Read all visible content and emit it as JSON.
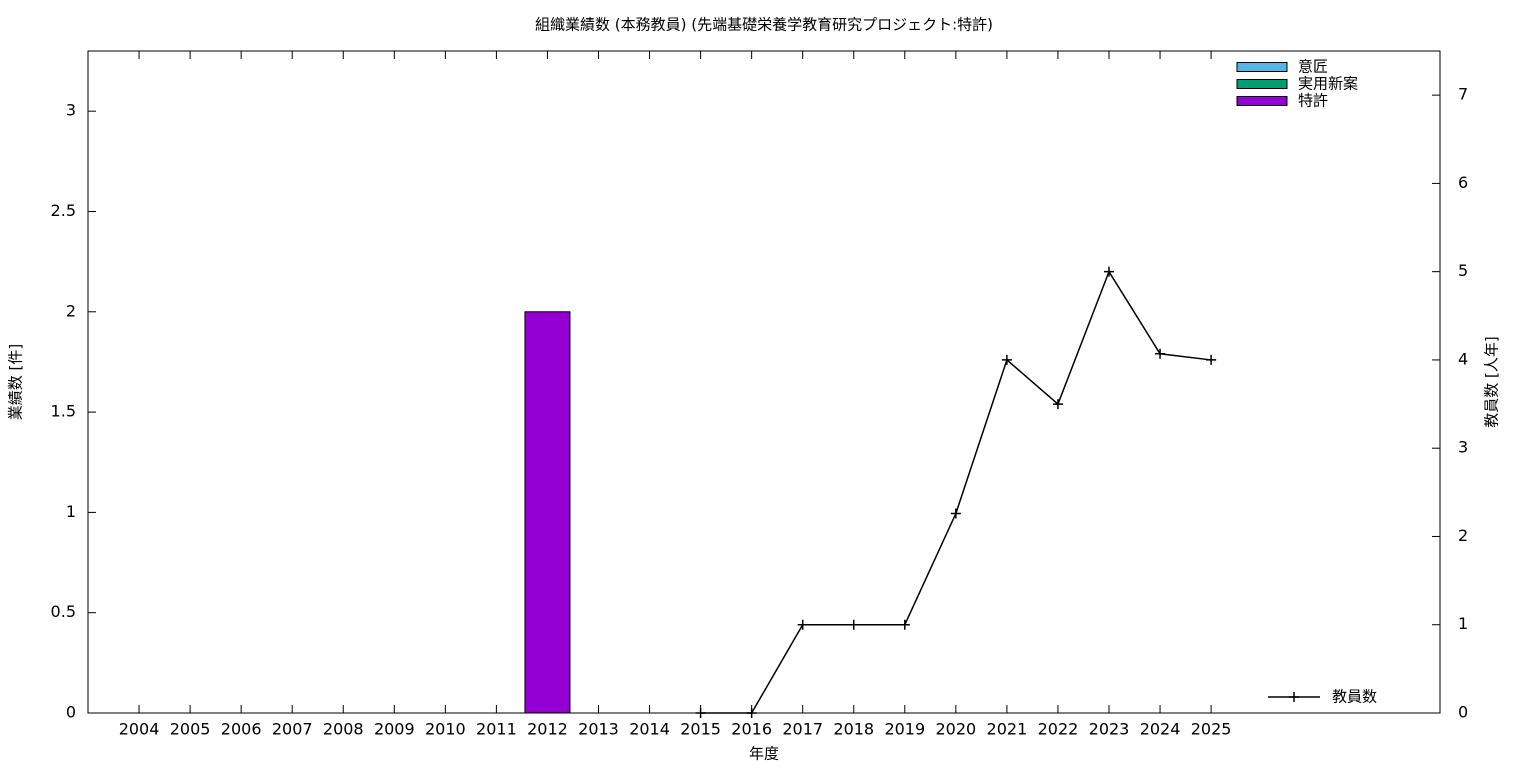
{
  "chart_data": {
    "type": "bar",
    "title": "組織業績数 (本務教員) (先端基礎栄養学教育研究プロジェクト:特許)",
    "xlabel": "年度",
    "ylabel": "業績数 [件]",
    "y2label": "教員数 [人年]",
    "categories": [
      "2004",
      "2005",
      "2006",
      "2007",
      "2008",
      "2009",
      "2010",
      "2011",
      "2012",
      "2013",
      "2014",
      "2015",
      "2016",
      "2017",
      "2018",
      "2019",
      "2020",
      "2021",
      "2022",
      "2023",
      "2024",
      "2025"
    ],
    "stacked": true,
    "series": [
      {
        "name": "意匠",
        "color": "#56b4e9",
        "values": [
          0,
          0,
          0,
          0,
          0,
          0,
          0,
          0,
          0,
          0,
          0,
          0,
          0,
          0,
          0,
          0,
          0,
          0,
          0,
          0,
          0,
          0
        ]
      },
      {
        "name": "実用新案",
        "color": "#009e73",
        "values": [
          0,
          0,
          0,
          0,
          0,
          0,
          0,
          0,
          0,
          0,
          0,
          0,
          0,
          0,
          0,
          0,
          0,
          0,
          0,
          0,
          0,
          0
        ]
      },
      {
        "name": "特許",
        "color": "#9400d3",
        "values": [
          0,
          0,
          0,
          0,
          0,
          0,
          0,
          0,
          2,
          0,
          0,
          0,
          0,
          0,
          0,
          0,
          0,
          0,
          0,
          0,
          0,
          0
        ]
      },
      {
        "name": "教員数",
        "type": "line",
        "axis": "y2",
        "color": "#000000",
        "values": [
          null,
          null,
          null,
          null,
          null,
          null,
          null,
          null,
          null,
          null,
          null,
          0,
          0,
          1,
          1,
          1,
          2.26,
          4,
          3.5,
          5,
          4.07,
          4
        ]
      }
    ],
    "ylim": [
      0,
      3.3
    ],
    "yticks": [
      0,
      0.5,
      1,
      1.5,
      2,
      2.5,
      3
    ],
    "y2lim": [
      0,
      7.5
    ],
    "y2ticks": [
      0,
      1,
      2,
      3,
      4,
      5,
      6,
      7
    ],
    "grid": false
  }
}
